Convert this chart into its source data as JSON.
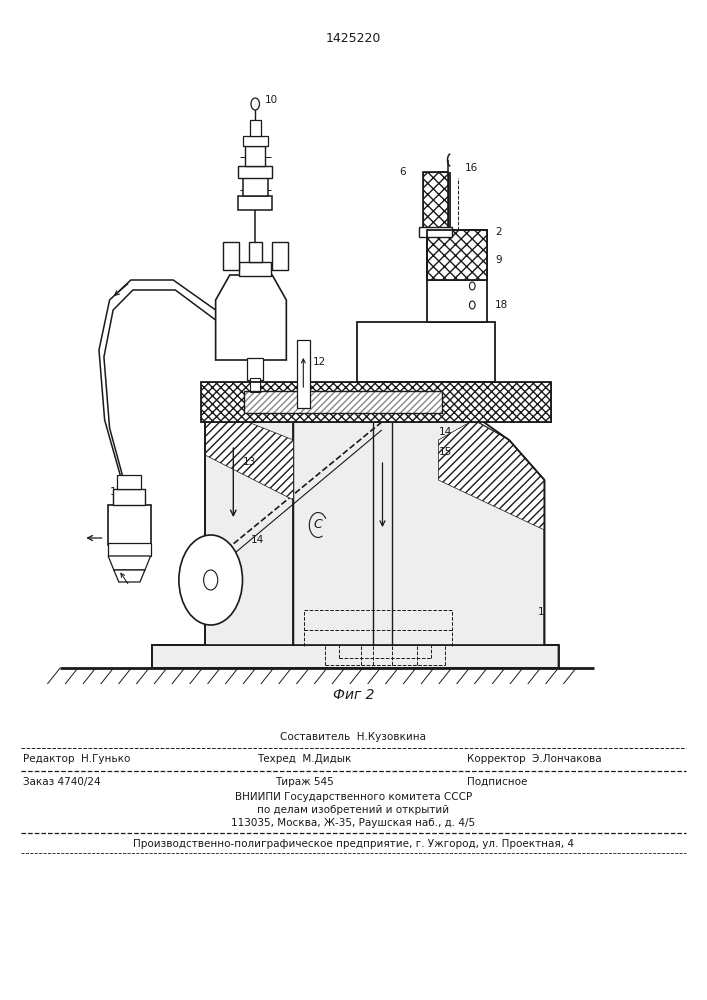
{
  "title_number": "1425220",
  "fig_caption": "Фиг 2",
  "bg_color": "#ffffff",
  "lc": "#1a1a1a",
  "footer_composer": "Составитель  Н.Кузовкина",
  "footer_editor": "Редактор  Н.Гунько",
  "footer_techred": "Техред  М.Дидык",
  "footer_corrector": "Корректор  Э.Лончакова",
  "footer_order": "Заказ 4740/24",
  "footer_tirazh": "Тираж 545",
  "footer_podpisnoe": "Подписное",
  "footer_vnipi1": "ВНИИПИ Государственного комитета СССР",
  "footer_vnipi2": "по делам изобретений и открытий",
  "footer_vnipi3": "113035, Москва, Ж-35, Раушская наб., д. 4/5",
  "footer_printer": "Производственно-полиграфическое предприятие, г. Ужгород, ул. Проектная, 4"
}
